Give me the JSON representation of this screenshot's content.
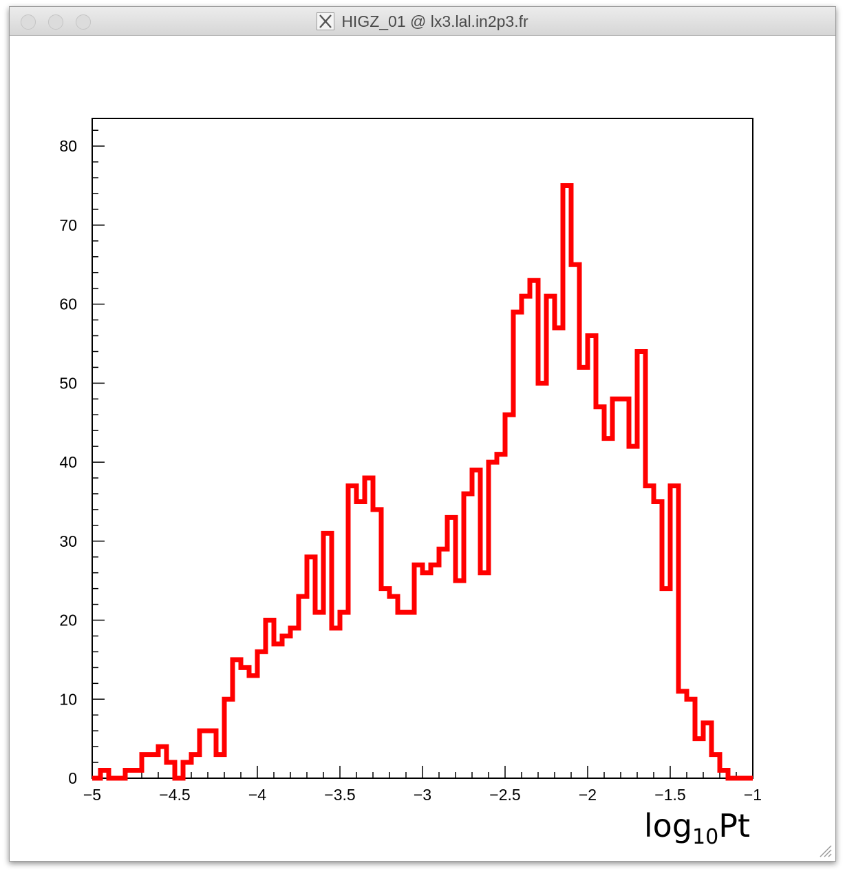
{
  "window": {
    "title": "HIGZ_01 @ lx3.lal.in2p3.fr",
    "icon": "x11-icon"
  },
  "chart_data": {
    "type": "histogram",
    "title": "",
    "xlabel": "log",
    "xlabel_sub": "10",
    "xlabel_tail": "Pt",
    "ylabel": "",
    "xlim": [
      -5,
      -1
    ],
    "ylim": [
      0,
      83.5
    ],
    "bin_width": 0.05,
    "line_color": "#ff0000",
    "grid": false,
    "x_ticks": [
      {
        "value": -5,
        "label": "−5"
      },
      {
        "value": -4.5,
        "label": "−4.5"
      },
      {
        "value": -4,
        "label": "−4"
      },
      {
        "value": -3.5,
        "label": "−3.5"
      },
      {
        "value": -3,
        "label": "−3"
      },
      {
        "value": -2.5,
        "label": "−2.5"
      },
      {
        "value": -2,
        "label": "−2"
      },
      {
        "value": -1.5,
        "label": "−1.5"
      },
      {
        "value": -1,
        "label": "−1"
      }
    ],
    "y_ticks": [
      {
        "value": 0,
        "label": "0"
      },
      {
        "value": 10,
        "label": "10"
      },
      {
        "value": 20,
        "label": "20"
      },
      {
        "value": 30,
        "label": "30"
      },
      {
        "value": 40,
        "label": "40"
      },
      {
        "value": 50,
        "label": "50"
      },
      {
        "value": 60,
        "label": "60"
      },
      {
        "value": 70,
        "label": "70"
      },
      {
        "value": 80,
        "label": "80"
      }
    ],
    "bin_low_edges": [
      -5.0,
      -4.95,
      -4.9,
      -4.85,
      -4.8,
      -4.75,
      -4.7,
      -4.65,
      -4.6,
      -4.55,
      -4.5,
      -4.45,
      -4.4,
      -4.35,
      -4.3,
      -4.25,
      -4.2,
      -4.15,
      -4.1,
      -4.05,
      -4.0,
      -3.95,
      -3.9,
      -3.85,
      -3.8,
      -3.75,
      -3.7,
      -3.65,
      -3.6,
      -3.55,
      -3.5,
      -3.45,
      -3.4,
      -3.35,
      -3.3,
      -3.25,
      -3.2,
      -3.15,
      -3.1,
      -3.05,
      -3.0,
      -2.95,
      -2.9,
      -2.85,
      -2.8,
      -2.75,
      -2.7,
      -2.65,
      -2.6,
      -2.55,
      -2.5,
      -2.45,
      -2.4,
      -2.35,
      -2.3,
      -2.25,
      -2.2,
      -2.15,
      -2.1,
      -2.05,
      -2.0,
      -1.95,
      -1.9,
      -1.85,
      -1.8,
      -1.75,
      -1.7,
      -1.65,
      -1.6,
      -1.55,
      -1.5,
      -1.45,
      -1.4,
      -1.35,
      -1.3,
      -1.25,
      -1.2,
      -1.15,
      -1.1,
      -1.05
    ],
    "values": [
      0,
      1,
      0,
      0,
      1,
      1,
      3,
      3,
      4,
      2,
      0,
      2,
      3,
      6,
      6,
      3,
      10,
      15,
      14,
      13,
      16,
      20,
      17,
      18,
      19,
      23,
      28,
      21,
      31,
      19,
      21,
      37,
      35,
      38,
      34,
      24,
      23,
      21,
      21,
      27,
      26,
      27,
      29,
      33,
      25,
      36,
      39,
      26,
      40,
      41,
      46,
      59,
      61,
      63,
      50,
      61,
      57,
      75,
      65,
      52,
      56,
      47,
      43,
      48,
      48,
      42,
      54,
      37,
      35,
      24,
      37,
      11,
      10,
      5,
      7,
      3,
      1,
      0,
      0,
      0
    ]
  }
}
